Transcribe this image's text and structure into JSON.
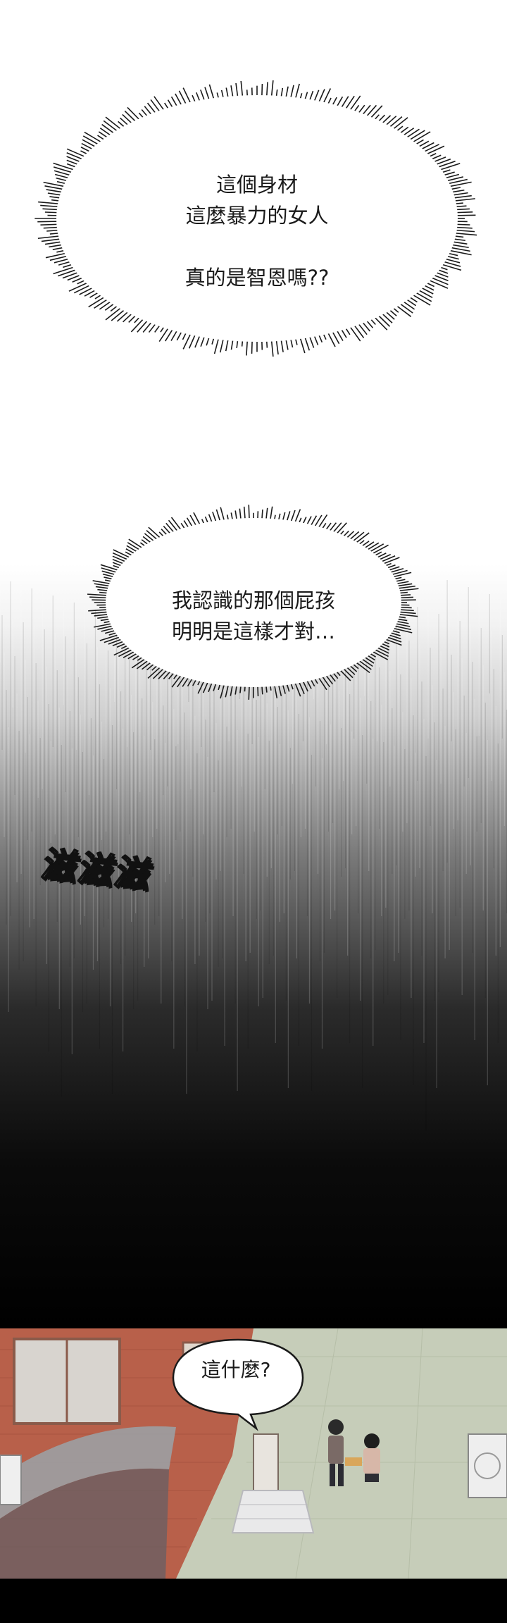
{
  "panel1": {
    "bubble_lines": [
      "這個身材",
      "這麼暴力的女人",
      "",
      "真的是智恩嗎??"
    ]
  },
  "panel2": {
    "bubble_lines": [
      "我認識的那個屁孩",
      "明明是這樣才對…"
    ],
    "sound_effect": "滋滋滋"
  },
  "panel3": {
    "speech": "這什麼?"
  },
  "colors": {
    "brick": "#b8604a",
    "pavement": "#c6cdb9",
    "ink": "#1a1a1a",
    "background": "#ffffff"
  }
}
